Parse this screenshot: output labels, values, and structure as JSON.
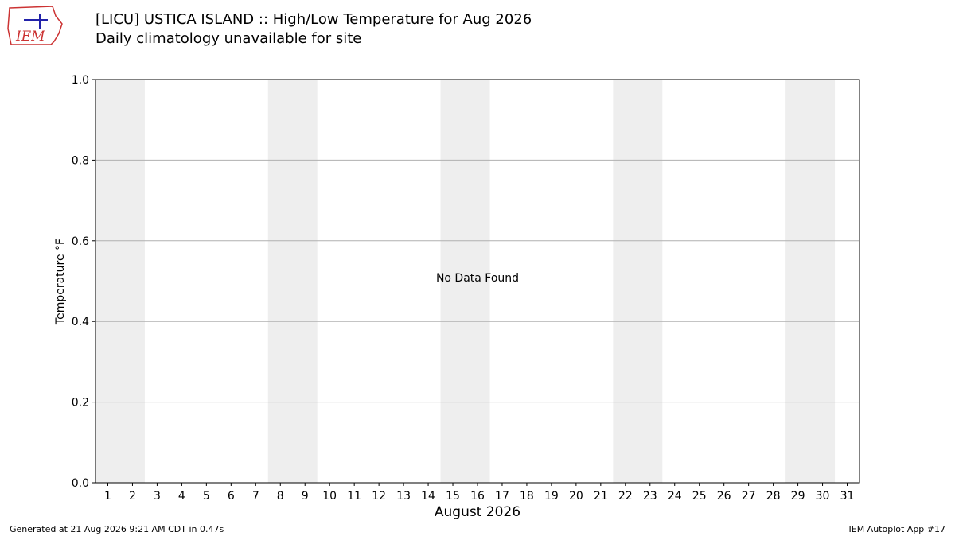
{
  "chart_data": {
    "type": "line",
    "title": "[LICU] USTICA ISLAND :: High/Low Temperature for Aug 2026",
    "subtitle": "Daily climatology unavailable for site",
    "y_label": "Temperature °F",
    "x_label": "August 2026",
    "annotation": "No Data Found",
    "x": [],
    "series": [],
    "xlim": [
      0.5,
      31.5
    ],
    "xticks": [
      1,
      2,
      3,
      4,
      5,
      6,
      7,
      8,
      9,
      10,
      11,
      12,
      13,
      14,
      15,
      16,
      17,
      18,
      19,
      20,
      21,
      22,
      23,
      24,
      25,
      26,
      27,
      28,
      29,
      30,
      31
    ],
    "ylim": [
      0,
      1
    ],
    "yticks": [
      {
        "value": 0,
        "label": "0.0"
      },
      0.2,
      0.4,
      0.6,
      0.8,
      {
        "value": 1,
        "label": "1.0"
      }
    ],
    "grid": "y",
    "shaded_spans": [
      [
        0.5,
        2.5
      ],
      [
        7.5,
        9.5
      ],
      [
        14.5,
        16.5
      ],
      [
        21.5,
        23.5
      ],
      [
        28.5,
        30.5
      ]
    ],
    "shade_color": "#eeeeee"
  },
  "logo_text": "IEM",
  "footer": {
    "left": "Generated at 21 Aug 2026 9:21 AM CDT in 0.47s",
    "right": "IEM Autoplot App #17"
  }
}
